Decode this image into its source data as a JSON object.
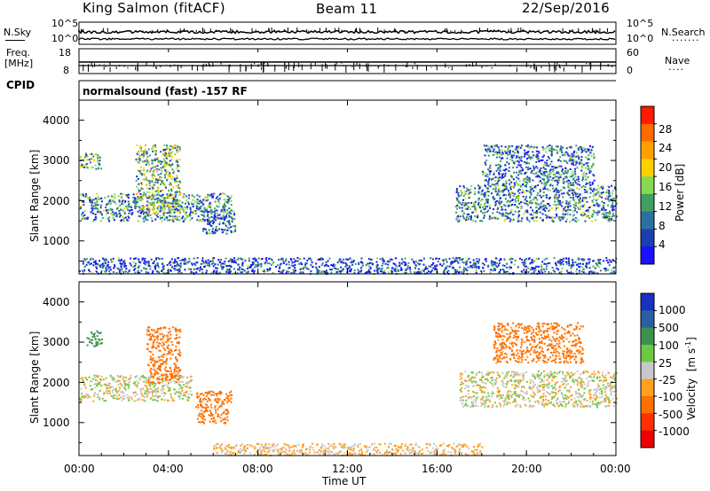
{
  "header": {
    "title": "King Salmon (fitACF)",
    "beam": "Beam 11",
    "date": "22/Sep/2016"
  },
  "noise_panel": {
    "left_label": "N.Sky",
    "left_ticks": [
      "10^5",
      "10^0"
    ],
    "right_label": "N.Search",
    "right_ticks": [
      "10^5",
      "10^0"
    ]
  },
  "freq_panel": {
    "left_label_line1": "Freq.",
    "left_label_line2": "[MHz]",
    "left_ticks": [
      "18",
      "8"
    ],
    "right_label": "Nave",
    "right_ticks": [
      "60",
      "0"
    ]
  },
  "cpid": {
    "label": "CPID",
    "mode": "normalsound (fast) -157 RF"
  },
  "x_axis": {
    "ticks": [
      "00:00",
      "04:00",
      "08:00",
      "12:00",
      "16:00",
      "20:00",
      "00:00"
    ],
    "label": "Time UT"
  },
  "y_axis": {
    "label": "Slant Range [km]",
    "ticks": [
      "1000",
      "2000",
      "3000",
      "4000"
    ]
  },
  "power_colorbar": {
    "label": "Power [dB]",
    "ticks": [
      "28",
      "24",
      "20",
      "16",
      "12",
      "8",
      "4"
    ],
    "colors": [
      "#ff1a00",
      "#ff6a00",
      "#ffa000",
      "#ffd000",
      "#88d850",
      "#3fa060",
      "#2a70a0",
      "#1a40b0",
      "#1a10ff"
    ]
  },
  "velocity_colorbar": {
    "label_main": "Velocity",
    "label_unit": "[m s",
    "label_exp": "-1",
    "label_close": "]",
    "ticks": [
      "1000",
      "500",
      "100",
      "25",
      "-25",
      "-100",
      "-500",
      "-1000"
    ],
    "colors": [
      "#1a30c0",
      "#2a60a0",
      "#3f9050",
      "#6acb40",
      "#c8c8c8",
      "#ffa020",
      "#ff7000",
      "#ff3000",
      "#ee0000"
    ]
  },
  "chart_data": [
    {
      "type": "heatmap",
      "title": "Power",
      "x_range_hours": [
        0,
        24
      ],
      "y_range_km": [
        180,
        4500
      ],
      "colorbar_range_db": [
        0,
        32
      ],
      "echo_regions": [
        {
          "t_start": 0.0,
          "t_end": 6.8,
          "range_start_km": 1500,
          "range_end_km": 2200,
          "power_db": 10
        },
        {
          "t_start": 0.0,
          "t_end": 1.0,
          "range_start_km": 2800,
          "range_end_km": 3200,
          "power_db": 12
        },
        {
          "t_start": 2.5,
          "t_end": 4.5,
          "range_start_km": 1700,
          "range_end_km": 3400,
          "power_db": 14
        },
        {
          "t_start": 5.5,
          "t_end": 7.0,
          "range_start_km": 1200,
          "range_end_km": 1800,
          "power_db": 8
        },
        {
          "t_start": 16.8,
          "t_end": 24.0,
          "range_start_km": 1500,
          "range_end_km": 2400,
          "power_db": 10
        },
        {
          "t_start": 18.0,
          "t_end": 23.0,
          "range_start_km": 2400,
          "range_end_km": 3400,
          "power_db": 8
        },
        {
          "t_start": 0.0,
          "t_end": 24.0,
          "range_start_km": 200,
          "range_end_km": 600,
          "power_db": 6
        }
      ]
    },
    {
      "type": "heatmap",
      "title": "Velocity",
      "x_range_hours": [
        0,
        24
      ],
      "y_range_km": [
        180,
        4500
      ],
      "colorbar_levels_ms": [
        1000,
        500,
        100,
        25,
        -25,
        -100,
        -500,
        -1000
      ],
      "echo_regions": [
        {
          "t_start": 0.0,
          "t_end": 5.0,
          "range_start_km": 1550,
          "range_end_km": 2200,
          "velocity_ms": 0
        },
        {
          "t_start": 3.0,
          "t_end": 4.5,
          "range_start_km": 2000,
          "range_end_km": 3400,
          "velocity_ms": -300
        },
        {
          "t_start": 5.2,
          "t_end": 6.8,
          "range_start_km": 1000,
          "range_end_km": 1800,
          "velocity_ms": -400
        },
        {
          "t_start": 0.3,
          "t_end": 1.0,
          "range_start_km": 2900,
          "range_end_km": 3300,
          "velocity_ms": 150
        },
        {
          "t_start": 17.0,
          "t_end": 24.0,
          "range_start_km": 1400,
          "range_end_km": 2300,
          "velocity_ms": 0
        },
        {
          "t_start": 18.5,
          "t_end": 22.5,
          "range_start_km": 2500,
          "range_end_km": 3500,
          "velocity_ms": -150
        },
        {
          "t_start": 6.0,
          "t_end": 18.0,
          "range_start_km": 200,
          "range_end_km": 500,
          "velocity_ms": -40
        }
      ]
    }
  ]
}
